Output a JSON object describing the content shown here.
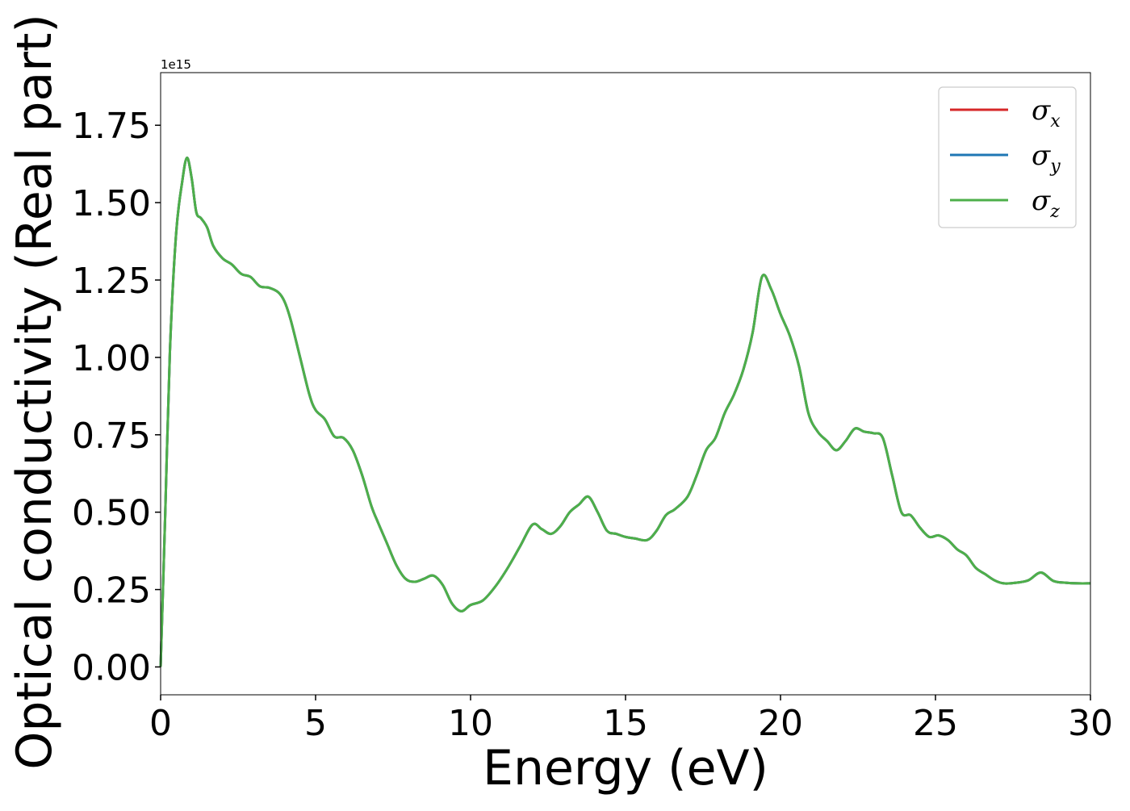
{
  "chart_data": {
    "type": "line",
    "xlabel": "Energy (eV)",
    "ylabel": "Optical conductivity (Real part)",
    "y_offset_label": "1e15",
    "y_scale_factor": 1000000000000000.0,
    "xlim": [
      0,
      30
    ],
    "ylim": [
      -0.09,
      1.92
    ],
    "xticks": [
      0,
      5,
      10,
      15,
      20,
      25,
      30
    ],
    "xtick_labels": [
      "0",
      "5",
      "10",
      "15",
      "20",
      "25",
      "30"
    ],
    "yticks": [
      0,
      0.25,
      0.5,
      0.75,
      1.0,
      1.25,
      1.5,
      1.75
    ],
    "ytick_labels": [
      "0.00",
      "0.25",
      "0.50",
      "0.75",
      "1.00",
      "1.25",
      "1.50",
      "1.75"
    ],
    "grid": false,
    "legend_position": "top-right",
    "series": [
      {
        "name": "σ_x",
        "symbol": "σ",
        "subscript": "x",
        "color": "#d62728"
      },
      {
        "name": "σ_y",
        "symbol": "σ",
        "subscript": "y",
        "color": "#1f77b4"
      },
      {
        "name": "σ_z",
        "symbol": "σ",
        "subscript": "z",
        "color": "#4daf4a"
      }
    ],
    "x": [
      0,
      0.15,
      0.3,
      0.5,
      0.7,
      0.85,
      1.0,
      1.15,
      1.3,
      1.5,
      1.7,
      2.0,
      2.3,
      2.6,
      2.9,
      3.2,
      3.5,
      3.8,
      4.0,
      4.2,
      4.5,
      4.8,
      5.0,
      5.3,
      5.6,
      5.9,
      6.2,
      6.5,
      6.8,
      7.0,
      7.3,
      7.6,
      7.9,
      8.2,
      8.5,
      8.8,
      9.1,
      9.4,
      9.7,
      10.0,
      10.4,
      10.8,
      11.2,
      11.6,
      12.0,
      12.3,
      12.6,
      12.9,
      13.2,
      13.5,
      13.8,
      14.1,
      14.4,
      14.7,
      15.0,
      15.3,
      15.7,
      16.0,
      16.3,
      16.6,
      17.0,
      17.3,
      17.6,
      17.9,
      18.2,
      18.5,
      18.8,
      19.1,
      19.4,
      19.7,
      20.0,
      20.3,
      20.6,
      20.9,
      21.2,
      21.5,
      21.8,
      22.1,
      22.4,
      22.7,
      23.0,
      23.3,
      23.6,
      23.9,
      24.2,
      24.5,
      24.8,
      25.1,
      25.4,
      25.7,
      26.0,
      26.3,
      26.6,
      26.9,
      27.2,
      27.6,
      28.0,
      28.4,
      28.8,
      29.2,
      29.6,
      30.0
    ],
    "values": [
      0.0,
      0.5,
      1.02,
      1.4,
      1.57,
      1.645,
      1.58,
      1.47,
      1.45,
      1.42,
      1.36,
      1.32,
      1.3,
      1.27,
      1.26,
      1.23,
      1.225,
      1.21,
      1.18,
      1.12,
      1.0,
      0.88,
      0.83,
      0.8,
      0.745,
      0.74,
      0.7,
      0.62,
      0.52,
      0.47,
      0.4,
      0.33,
      0.285,
      0.275,
      0.285,
      0.295,
      0.265,
      0.205,
      0.18,
      0.2,
      0.215,
      0.26,
      0.32,
      0.39,
      0.46,
      0.445,
      0.43,
      0.455,
      0.5,
      0.525,
      0.55,
      0.5,
      0.44,
      0.43,
      0.42,
      0.415,
      0.41,
      0.44,
      0.49,
      0.51,
      0.55,
      0.62,
      0.7,
      0.74,
      0.82,
      0.88,
      0.96,
      1.08,
      1.26,
      1.22,
      1.14,
      1.07,
      0.97,
      0.82,
      0.76,
      0.73,
      0.7,
      0.73,
      0.77,
      0.76,
      0.755,
      0.74,
      0.62,
      0.5,
      0.49,
      0.45,
      0.42,
      0.425,
      0.41,
      0.38,
      0.36,
      0.32,
      0.3,
      0.28,
      0.27,
      0.272,
      0.28,
      0.305,
      0.278,
      0.272,
      0.27,
      0.27
    ]
  }
}
